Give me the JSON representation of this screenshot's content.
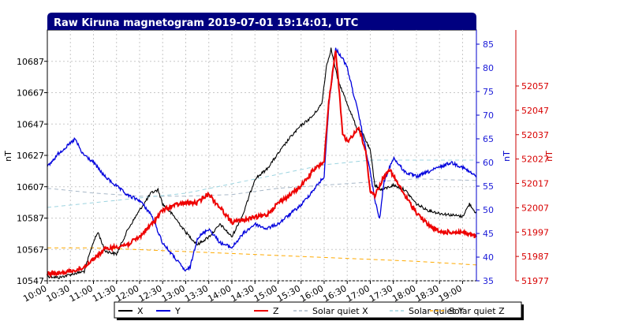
{
  "chart_data": {
    "type": "line",
    "title": "Raw Kiruna magnetogram 2019-07-01 19:14:01, UTC",
    "x_ticks": [
      "10:00",
      "10:30",
      "11:00",
      "11:30",
      "12:00",
      "12:30",
      "13:00",
      "13:30",
      "14:00",
      "14:30",
      "15:00",
      "15:30",
      "16:00",
      "16:30",
      "17:00",
      "17:30",
      "18:00",
      "18:30",
      "19:00"
    ],
    "x_range_hours": [
      10.0,
      19.3
    ],
    "axes": {
      "left": {
        "label": "nT",
        "range": [
          10547,
          10707
        ],
        "ticks": [
          "10547",
          "10567",
          "10587",
          "10607",
          "10627",
          "10647",
          "10667",
          "10687"
        ],
        "color": "#000000"
      },
      "right1": {
        "label": "nT",
        "range": [
          35,
          88
        ],
        "ticks": [
          "35",
          "40",
          "45",
          "50",
          "55",
          "60",
          "65",
          "70",
          "75",
          "80",
          "85"
        ],
        "color": "#0000cc"
      },
      "right2": {
        "label": "nT",
        "range": [
          51977,
          52080
        ],
        "ticks": [
          "51977",
          "51987",
          "51997",
          "52007",
          "52017",
          "52027",
          "52037",
          "52047",
          "52057"
        ],
        "color": "#cc0000"
      }
    },
    "grid": true,
    "legend_position": "bottom",
    "colors": {
      "X": "#000000",
      "Y": "#0000dd",
      "Z": "#ee0000",
      "quietX": "#a8b8c8",
      "quietY": "#9dd4e0",
      "quietZ": "#ffaa00",
      "title_bg": "#000080"
    },
    "series": [
      {
        "name": "X",
        "axis": "left",
        "style": "solid",
        "noise": 0.6,
        "x": [
          10.0,
          10.25,
          10.5,
          10.8,
          11.0,
          11.1,
          11.25,
          11.5,
          11.75,
          12.0,
          12.25,
          12.4,
          12.5,
          12.75,
          13.0,
          13.25,
          13.5,
          13.75,
          14.0,
          14.25,
          14.5,
          14.75,
          15.0,
          15.25,
          15.5,
          15.75,
          15.95,
          16.05,
          16.15,
          16.3,
          16.5,
          16.7,
          16.85,
          17.0,
          17.1,
          17.25,
          17.5,
          17.75,
          18.0,
          18.25,
          18.5,
          18.75,
          19.0,
          19.15,
          19.3
        ],
        "values": [
          10550,
          10549,
          10551,
          10553,
          10572,
          10578,
          10566,
          10564,
          10580,
          10592,
          10603,
          10605,
          10596,
          10588,
          10578,
          10570,
          10575,
          10583,
          10575,
          10590,
          10612,
          10618,
          10628,
          10638,
          10646,
          10652,
          10660,
          10684,
          10695,
          10675,
          10660,
          10645,
          10640,
          10630,
          10608,
          10605,
          10608,
          10605,
          10596,
          10592,
          10590,
          10589,
          10588,
          10596,
          10590
        ]
      },
      {
        "name": "Y",
        "axis": "right1",
        "style": "solid",
        "noise": 0.7,
        "x": [
          10.0,
          10.25,
          10.5,
          10.6,
          10.75,
          11.0,
          11.25,
          11.5,
          11.75,
          12.0,
          12.25,
          12.5,
          12.75,
          13.0,
          13.1,
          13.25,
          13.5,
          13.75,
          14.0,
          14.25,
          14.5,
          14.75,
          15.0,
          15.25,
          15.5,
          15.75,
          16.0,
          16.1,
          16.25,
          16.4,
          16.5,
          16.75,
          17.0,
          17.1,
          17.2,
          17.3,
          17.5,
          17.75,
          18.0,
          18.25,
          18.5,
          18.75,
          19.0,
          19.15,
          19.3
        ],
        "values": [
          59,
          62,
          64,
          65,
          62,
          60,
          57,
          55,
          53,
          52,
          49,
          43,
          40,
          37,
          38,
          44,
          46,
          43,
          42,
          45,
          47,
          46,
          47,
          49,
          51,
          54,
          57,
          72,
          84,
          82,
          80,
          70,
          58,
          52,
          48,
          56,
          61,
          58,
          57,
          58,
          59,
          60,
          59,
          58,
          57
        ]
      },
      {
        "name": "Z",
        "axis": "right2",
        "style": "solid",
        "noise": 0.9,
        "x": [
          10.0,
          10.25,
          10.5,
          10.75,
          11.0,
          11.25,
          11.5,
          11.75,
          12.0,
          12.25,
          12.5,
          12.75,
          13.0,
          13.25,
          13.5,
          13.6,
          13.75,
          14.0,
          14.25,
          14.5,
          14.75,
          15.0,
          15.25,
          15.5,
          15.75,
          16.0,
          16.1,
          16.25,
          16.4,
          16.5,
          16.75,
          16.9,
          17.0,
          17.1,
          17.25,
          17.4,
          17.5,
          17.75,
          18.0,
          18.25,
          18.5,
          18.75,
          19.0,
          19.15,
          19.3
        ],
        "values": [
          51980,
          51980,
          51981,
          51982,
          51986,
          51990,
          51991,
          51992,
          51995,
          52000,
          52006,
          52008,
          52009,
          52009,
          52013,
          52010,
          52007,
          52001,
          52002,
          52003,
          52004,
          52009,
          52012,
          52016,
          52022,
          52026,
          52050,
          52072,
          52038,
          52034,
          52040,
          52030,
          52014,
          52012,
          52018,
          52023,
          52020,
          52012,
          52005,
          52000,
          51997,
          51997,
          51997,
          51996,
          51995
        ]
      },
      {
        "name": "Solar quiet X",
        "axis": "left",
        "style": "dashed",
        "x": [
          10.0,
          11.0,
          12.0,
          13.0,
          14.0,
          15.0,
          16.0,
          17.0,
          18.0,
          19.3
        ],
        "values": [
          10606,
          10603,
          10601,
          10601,
          10602,
          10606,
          10608,
          10610,
          10612,
          10611
        ]
      },
      {
        "name": "Solar quiet Y",
        "axis": "right1",
        "style": "dashed",
        "x": [
          10.0,
          11.0,
          12.0,
          13.0,
          14.0,
          15.0,
          16.0,
          17.0,
          18.0,
          19.3
        ],
        "values": [
          50.5,
          51.5,
          52.5,
          53.5,
          55.5,
          57.5,
          59.5,
          60.5,
          60.5,
          60.5
        ]
      },
      {
        "name": "Solar quiet Z",
        "axis": "right2",
        "style": "dashed",
        "x": [
          10.0,
          11.0,
          12.0,
          13.0,
          14.0,
          15.0,
          16.0,
          17.0,
          18.0,
          19.3
        ],
        "values": [
          51990.5,
          51990.5,
          51989.8,
          51989,
          51988.2,
          51987.4,
          51986.6,
          51985.8,
          51985,
          51983.5
        ]
      }
    ]
  }
}
